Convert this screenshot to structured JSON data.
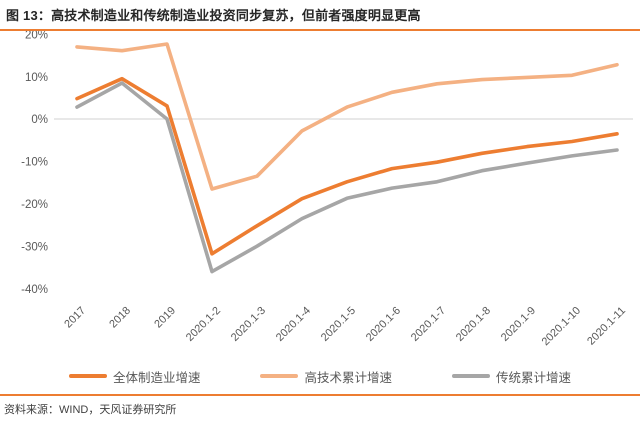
{
  "header": {
    "title": "图 13：高技术制造业和传统制造业投资同步复苏，但前者强度明显更高"
  },
  "footer": {
    "text": "资料来源：WIND，天风证券研究所"
  },
  "colors": {
    "accent_orange": "#ED7D31",
    "grid_line": "#D9D9D9",
    "axis_text": "#595959",
    "title_text": "#262626",
    "footer_text": "#3F3F3F"
  },
  "chart_data": {
    "type": "line",
    "title": "高技术制造业和传统制造业投资同步复苏，但前者强度明显更高",
    "categories": [
      "2017",
      "2018",
      "2019",
      "2020.1-2",
      "2020.1-3",
      "2020.1-4",
      "2020.1-5",
      "2020.1-6",
      "2020.1-7",
      "2020.1-8",
      "2020.1-9",
      "2020.1-10",
      "2020.1-11"
    ],
    "series": [
      {
        "name": "全体制造业增速",
        "color": "#ED7D31",
        "values": [
          4.8,
          9.5,
          3.1,
          -31.8,
          -25.2,
          -18.8,
          -14.8,
          -11.7,
          -10.2,
          -8.1,
          -6.5,
          -5.3,
          -3.5
        ]
      },
      {
        "name": "高技术累计增速",
        "color": "#F4B183",
        "values": [
          17.0,
          16.1,
          17.7,
          -16.5,
          -13.5,
          -2.8,
          2.8,
          6.3,
          8.3,
          9.3,
          9.8,
          10.3,
          12.8
        ]
      },
      {
        "name": "传统累计增速",
        "color": "#A6A6A6",
        "values": [
          2.8,
          8.5,
          0.0,
          -36.0,
          -30.0,
          -23.5,
          -18.7,
          -16.3,
          -14.8,
          -12.2,
          -10.4,
          -8.7,
          -7.3
        ]
      }
    ],
    "xlabel": "",
    "ylabel": "",
    "y_ticks": [
      20,
      10,
      0,
      -10,
      -20,
      -30,
      -40
    ],
    "y_tick_suffix": "%",
    "ylim": [
      -40,
      20
    ],
    "grid": "zero-line-only",
    "legend_position": "bottom"
  }
}
